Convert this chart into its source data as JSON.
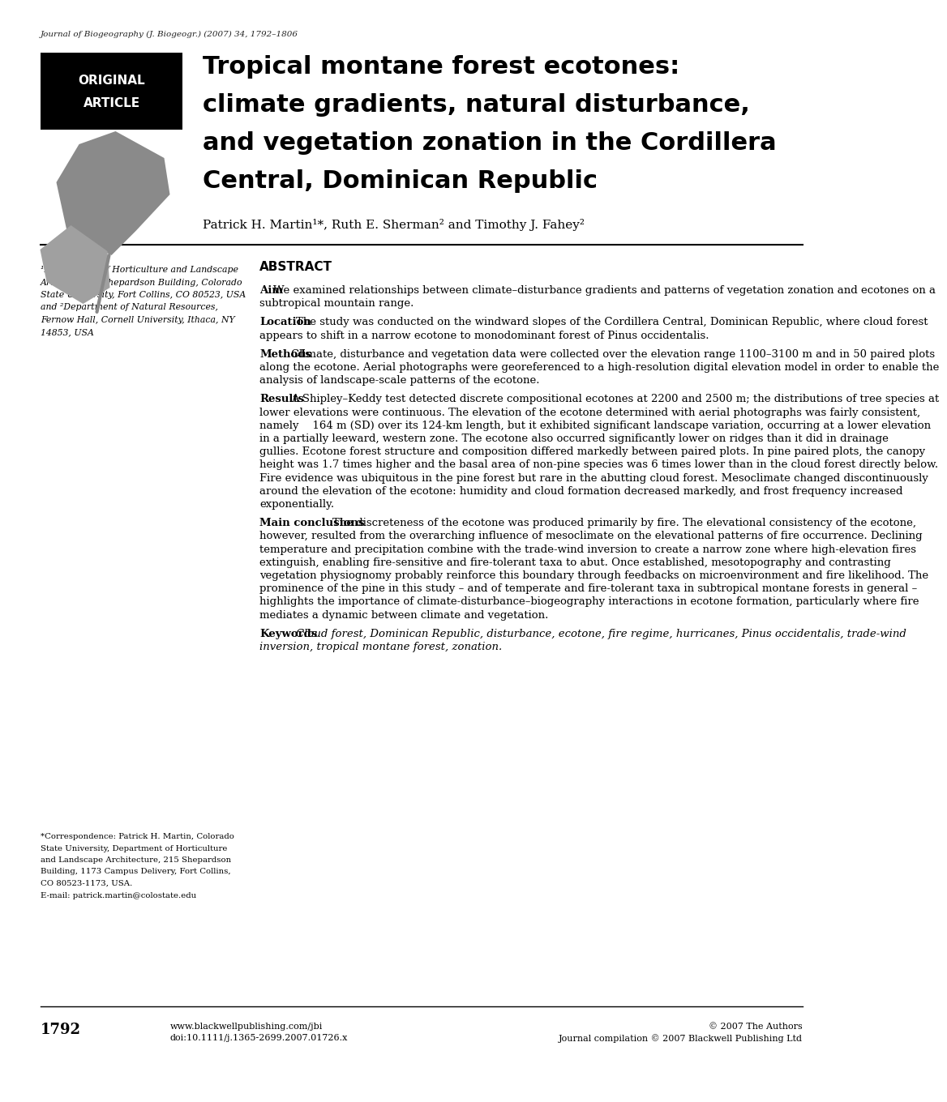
{
  "bg_color": "#ffffff",
  "journal_line": "Journal of Biogeography (J. Biogeogr.) (2007) 34, 1792–1806",
  "badge_text_line1": "ORIGINAL",
  "badge_text_line2": "ARTICLE",
  "title_line1": "Tropical montane forest ecotones:",
  "title_line2": "climate gradients, natural disturbance,",
  "title_line3": "and vegetation zonation in the Cordillera",
  "title_line4": "Central, Dominican Republic",
  "authors": "Patrick H. Martin¹*, Ruth E. Sherman² and Timothy J. Fahey²",
  "left_col_affil": "¹Department of Horticulture and Landscape\nArchitecture, Shepardson Building, Colorado\nState University, Fort Collins, CO 80523, USA\nand ²Department of Natural Resources,\nFernow Hall, Cornell University, Ithaca, NY\n14853, USA",
  "left_col_corr": "*Correspondence: Patrick H. Martin, Colorado\nState University, Department of Horticulture\nand Landscape Architecture, 215 Shepardson\nBuilding, 1173 Campus Delivery, Fort Collins,\nCO 80523-1173, USA.\nE-mail: patrick.martin@colostate.edu",
  "abstract_label": "ABSTRACT",
  "aim_label": "Aim",
  "aim_text": " We examined relationships between climate–disturbance gradients and patterns of vegetation zonation and ecotones on a subtropical mountain range.",
  "location_label": "Location",
  "location_text": " The study was conducted on the windward slopes of the Cordillera Central, Dominican Republic, where cloud forest appears to shift in a narrow ecotone to monodominant forest of Pinus occidentalis.",
  "methods_label": "Methods",
  "methods_text": " Climate, disturbance and vegetation data were collected over the elevation range 1100–3100 m and in 50 paired plots along the ecotone. Aerial photographs were georeferenced to a high-resolution digital elevation model in order to enable the analysis of landscape-scale patterns of the ecotone.",
  "results_label": "Results",
  "results_text": " A Shipley–Keddy test detected discrete compositional ecotones at 2200 and 2500 m; the distributions of tree species at lower elevations were continuous. The elevation of the ecotone determined with aerial photographs was fairly consistent, namely    164 m (SD) over its 124-km length, but it exhibited significant landscape variation, occurring at a lower elevation in a partially leeward, western zone. The ecotone also occurred significantly lower on ridges than it did in drainage gullies. Ecotone forest structure and composition differed markedly between paired plots. In pine paired plots, the canopy height was 1.7 times higher and the basal area of non-pine species was 6 times lower than in the cloud forest directly below. Fire evidence was ubiquitous in the pine forest but rare in the abutting cloud forest. Mesoclimate changed discontinuously around the elevation of the ecotone: humidity and cloud formation decreased markedly, and frost frequency increased exponentially.",
  "main_label": "Main conclusions",
  "main_text": " The discreteness of the ecotone was produced primarily by fire. The elevational consistency of the ecotone, however, resulted from the overarching influence of mesoclimate on the elevational patterns of fire occurrence. Declining temperature and precipitation combine with the trade-wind inversion to create a narrow zone where high-elevation fires extinguish, enabling fire-sensitive and fire-tolerant taxa to abut. Once established, mesotopography and contrasting vegetation physiognomy probably reinforce this boundary through feedbacks on microenvironment and fire likelihood. The prominence of the pine in this study – and of temperate and fire-tolerant taxa in subtropical montane forests in general – highlights the importance of climate-disturbance–biogeography interactions in ecotone formation, particularly where fire mediates a dynamic between climate and vegetation.",
  "keywords_label": "Keywords",
  "keywords_text": "Cloud forest, Dominican Republic, disturbance, ecotone, fire regime, hurricanes, Pinus occidentalis, trade-wind inversion, tropical montane forest, zonation.",
  "page_num": "1792",
  "footer_left_1": "www.blackwellpublishing.com/jbi",
  "footer_left_2": "doi:10.1111/j.1365-2699.2007.01726.x",
  "footer_right_1": "© 2007 The Authors",
  "footer_right_2": "Journal compilation © 2007 Blackwell Publishing Ltd"
}
